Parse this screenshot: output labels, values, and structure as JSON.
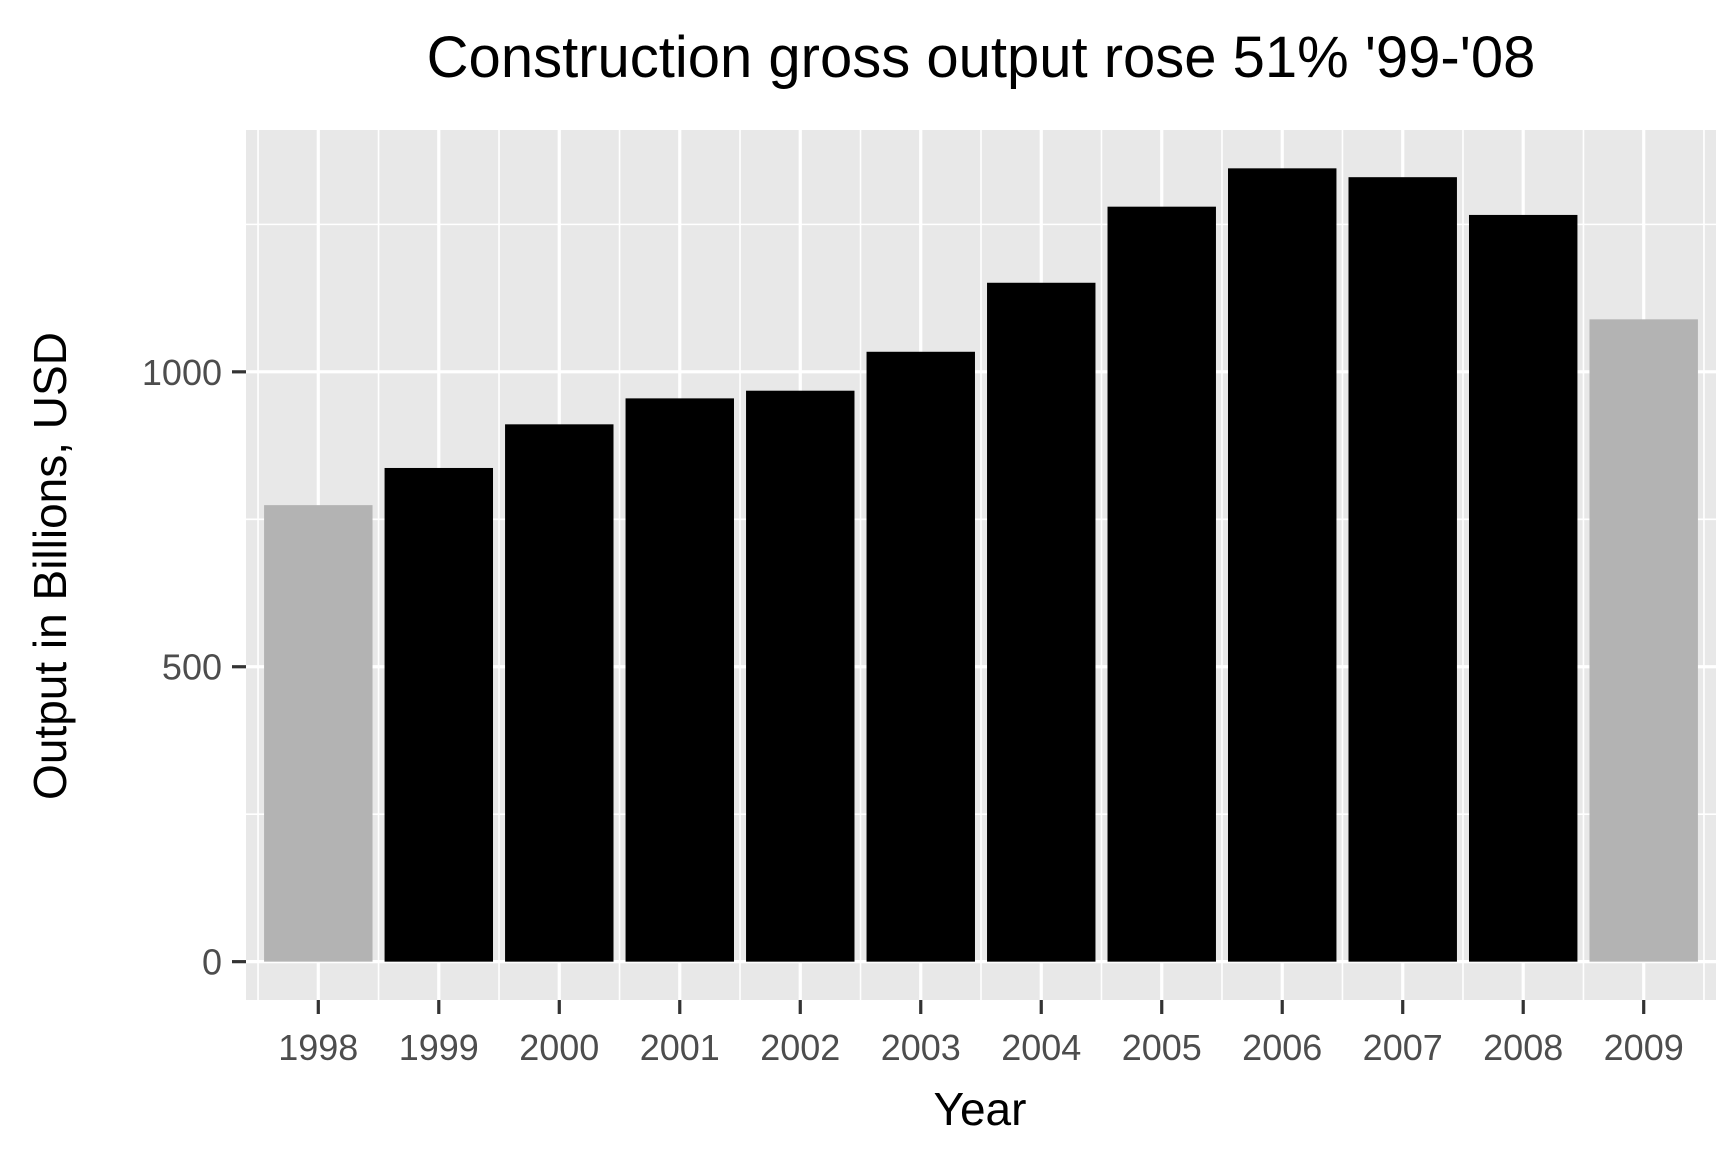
{
  "chart_data": {
    "type": "bar",
    "title": "Construction gross output rose 51% '99-'08",
    "xlabel": "Year",
    "ylabel": "Output in Billions, USD",
    "categories": [
      "1998",
      "1999",
      "2000",
      "2001",
      "2002",
      "2003",
      "2004",
      "2005",
      "2006",
      "2007",
      "2008",
      "2009"
    ],
    "values": [
      774,
      837,
      911,
      955,
      968,
      1034,
      1151,
      1280,
      1345,
      1330,
      1266,
      1089
    ],
    "highlighted": [
      false,
      true,
      true,
      true,
      true,
      true,
      true,
      true,
      true,
      true,
      true,
      false
    ],
    "ylim": [
      -65,
      1410
    ],
    "y_ticks": [
      0,
      500,
      1000
    ],
    "y_tick_labels": [
      "0",
      "500",
      "1000"
    ],
    "grid": true,
    "legend": "none",
    "colors": {
      "panel_background": "#e8e8e8",
      "grid_line": "#ffffff",
      "bar_highlight": "#000000",
      "bar_muted": "#b3b3b3",
      "tick_label": "#4d4d4d"
    }
  }
}
